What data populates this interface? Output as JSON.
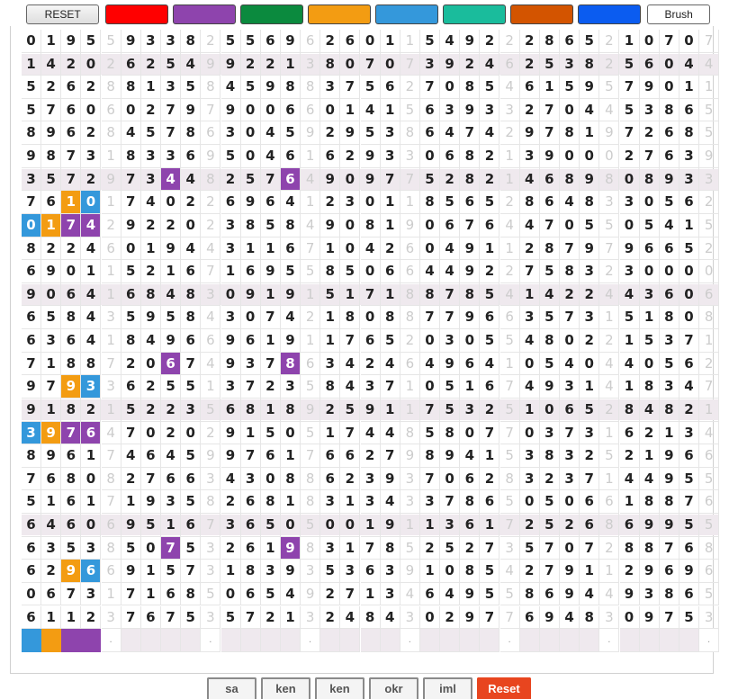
{
  "toolbar": {
    "reset_label": "RESET",
    "brush_label": "Brush",
    "swatches": [
      {
        "name": "red",
        "color": "#ff0000"
      },
      {
        "name": "purple",
        "color": "#8e44ad"
      },
      {
        "name": "green",
        "color": "#0b8a3e"
      },
      {
        "name": "orange",
        "color": "#f39c12"
      },
      {
        "name": "light-blue",
        "color": "#3498db"
      },
      {
        "name": "teal",
        "color": "#1abc9c"
      },
      {
        "name": "dark-orange",
        "color": "#d35400"
      },
      {
        "name": "blue",
        "color": "#0b5cf0"
      }
    ]
  },
  "colors": {
    "P": "#8e44ad",
    "O": "#f39c12",
    "B": "#3498db",
    "sep": "#cccccc",
    "band": "#efe9ee"
  },
  "grid": {
    "rows": [
      "01955933825569626011549222865210707",
      "14202625499221380707392462538256044",
      "52628813584598837562708546159579011",
      "57606027979006601415639332704453865",
      "89628457863045929538647429781972685",
      "98731833695046162933068213900027639",
      "35729734482576490977528214689808933",
      "76101740226964123011856528648330562",
      "01742922023858490819067644705505415",
      "82246019443116710426049112879796652",
      "69011521671695585066449227583230000",
      "90641684830919151718878541422443606",
      "65843595843074218088779663573151808",
      "63641849669619117652030554802215371",
      "71887206749378634246496410540440562",
      "97933625513723584371051674931418347",
      "91821522356818925911753251065284821",
      "39764702029150517448580770373162134",
      "89617464599761766279894153832521966",
      "76808276634308862393706283237144955",
      "51617193582681831343378650506618876",
      "64606951673650500191136172526869955",
      "63538507532619831785252735707288768",
      "62966915731839353639108542791129696",
      "06731716850654927134649558694493865",
      "61123767535721324843029776948309753"
    ],
    "shaded_rows": [
      1,
      6,
      11,
      16,
      21
    ],
    "highlights": [
      {
        "row": 6,
        "col": 7,
        "color": "P"
      },
      {
        "row": 6,
        "col": 13,
        "color": "P"
      },
      {
        "row": 7,
        "col": 2,
        "color": "O"
      },
      {
        "row": 7,
        "col": 3,
        "color": "B"
      },
      {
        "row": 8,
        "col": 0,
        "color": "B"
      },
      {
        "row": 8,
        "col": 1,
        "color": "O"
      },
      {
        "row": 8,
        "col": 2,
        "color": "P"
      },
      {
        "row": 8,
        "col": 3,
        "color": "P"
      },
      {
        "row": 14,
        "col": 7,
        "color": "P"
      },
      {
        "row": 14,
        "col": 13,
        "color": "P"
      },
      {
        "row": 15,
        "col": 2,
        "color": "O"
      },
      {
        "row": 15,
        "col": 3,
        "color": "B"
      },
      {
        "row": 17,
        "col": 0,
        "color": "B"
      },
      {
        "row": 17,
        "col": 1,
        "color": "O"
      },
      {
        "row": 17,
        "col": 2,
        "color": "P"
      },
      {
        "row": 17,
        "col": 3,
        "color": "P"
      },
      {
        "row": 22,
        "col": 7,
        "color": "P"
      },
      {
        "row": 22,
        "col": 13,
        "color": "P"
      },
      {
        "row": 23,
        "col": 2,
        "color": "O"
      },
      {
        "row": 23,
        "col": 3,
        "color": "B"
      }
    ],
    "palette_row": [
      "B",
      "O",
      "P",
      "P"
    ],
    "palette_dot": "."
  },
  "bottom_buttons": [
    {
      "name": "save-button",
      "label": "sa"
    },
    {
      "name": "ken-button-1",
      "label": "ken"
    },
    {
      "name": "ken-button-2",
      "label": "ken"
    },
    {
      "name": "okr-button",
      "label": "okr"
    },
    {
      "name": "iml-button",
      "label": "iml"
    },
    {
      "name": "reset-all-button",
      "label": "Reset",
      "style": "red"
    }
  ]
}
